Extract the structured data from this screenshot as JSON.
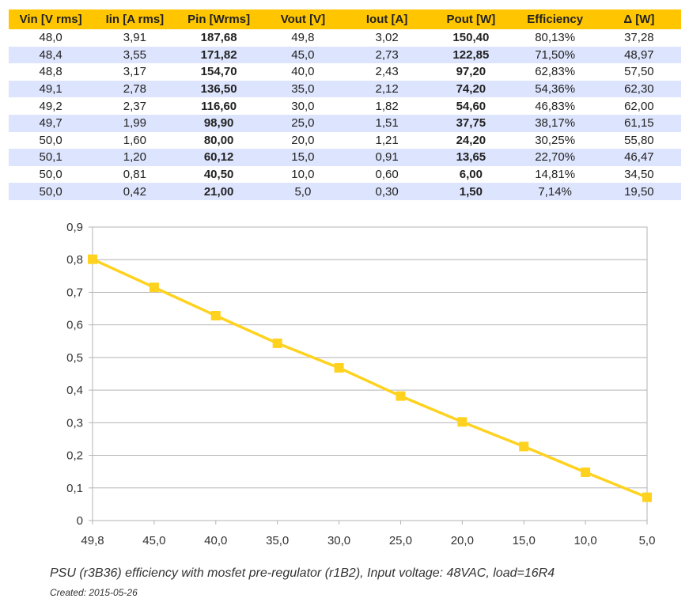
{
  "table": {
    "headers": [
      "Vin [V rms]",
      "Iin [A rms]",
      "Pin [Wrms]",
      "Vout [V]",
      "Iout [A]",
      "Pout [W]",
      "Efficiency",
      "Δ [W]"
    ],
    "rows": [
      [
        "48,0",
        "3,91",
        "187,68",
        "49,8",
        "3,02",
        "150,40",
        "80,13%",
        "37,28"
      ],
      [
        "48,4",
        "3,55",
        "171,82",
        "45,0",
        "2,73",
        "122,85",
        "71,50%",
        "48,97"
      ],
      [
        "48,8",
        "3,17",
        "154,70",
        "40,0",
        "2,43",
        "97,20",
        "62,83%",
        "57,50"
      ],
      [
        "49,1",
        "2,78",
        "136,50",
        "35,0",
        "2,12",
        "74,20",
        "54,36%",
        "62,30"
      ],
      [
        "49,2",
        "2,37",
        "116,60",
        "30,0",
        "1,82",
        "54,60",
        "46,83%",
        "62,00"
      ],
      [
        "49,7",
        "1,99",
        "98,90",
        "25,0",
        "1,51",
        "37,75",
        "38,17%",
        "61,15"
      ],
      [
        "50,0",
        "1,60",
        "80,00",
        "20,0",
        "1,21",
        "24,20",
        "30,25%",
        "55,80"
      ],
      [
        "50,1",
        "1,20",
        "60,12",
        "15,0",
        "0,91",
        "13,65",
        "22,70%",
        "46,47"
      ],
      [
        "50,0",
        "0,81",
        "40,50",
        "10,0",
        "0,60",
        "6,00",
        "14,81%",
        "34,50"
      ],
      [
        "50,0",
        "0,42",
        "21,00",
        "5,0",
        "0,30",
        "1,50",
        "7,14%",
        "19,50"
      ]
    ]
  },
  "chart_data": {
    "type": "line",
    "categories": [
      "49,8",
      "45,0",
      "40,0",
      "35,0",
      "30,0",
      "25,0",
      "20,0",
      "15,0",
      "10,0",
      "5,0"
    ],
    "series": [
      {
        "values": [
          0.8013,
          0.715,
          0.6283,
          0.5436,
          0.4683,
          0.3817,
          0.3025,
          0.227,
          0.1481,
          0.0714
        ]
      }
    ],
    "y_ticks": [
      "0",
      "0,1",
      "0,2",
      "0,3",
      "0,4",
      "0,5",
      "0,6",
      "0,7",
      "0,8",
      "0,9"
    ],
    "ylim": [
      0,
      0.9
    ],
    "grid": true,
    "line_color": "#ffd21f"
  },
  "caption": "PSU (r3B36) efficiency with mosfet pre-regulator (r1B2), Input voltage: 48VAC, load=16R4",
  "created": "Created: 2015-05-26"
}
